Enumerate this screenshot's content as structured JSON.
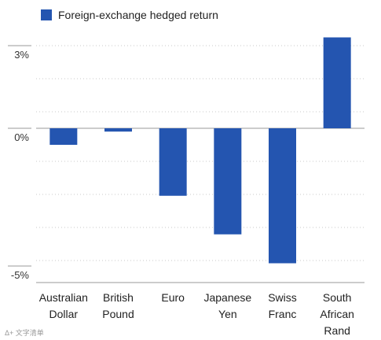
{
  "chart_data": {
    "type": "bar",
    "legend": {
      "label": "Foreign-exchange hedged return",
      "color": "#2455b0",
      "position": "top-left"
    },
    "categories": [
      [
        "Australian",
        "Dollar"
      ],
      [
        "British",
        "Pound"
      ],
      [
        "Euro"
      ],
      [
        "Japanese",
        "Yen"
      ],
      [
        "Swiss",
        "Franc"
      ],
      [
        "South",
        "African",
        "Rand"
      ]
    ],
    "series": [
      {
        "name": "Foreign-exchange hedged return",
        "values": [
          -0.6,
          -0.12,
          -2.45,
          -3.85,
          -4.9,
          3.3
        ]
      }
    ],
    "y_tick_labels": [
      {
        "value": 3,
        "label": "3%"
      },
      {
        "value": 0,
        "label": "0%"
      },
      {
        "value": -5,
        "label": "-5%"
      }
    ],
    "gridline_values": [
      3,
      1.8,
      0.6,
      -1.2,
      -2.4,
      -3.6,
      -4.8
    ],
    "ylim": [
      -5.6,
      3.4
    ],
    "grid": "dotted-horizontal",
    "bar_color": "#2455b0"
  },
  "watermark": "Δ+ 文字清单"
}
